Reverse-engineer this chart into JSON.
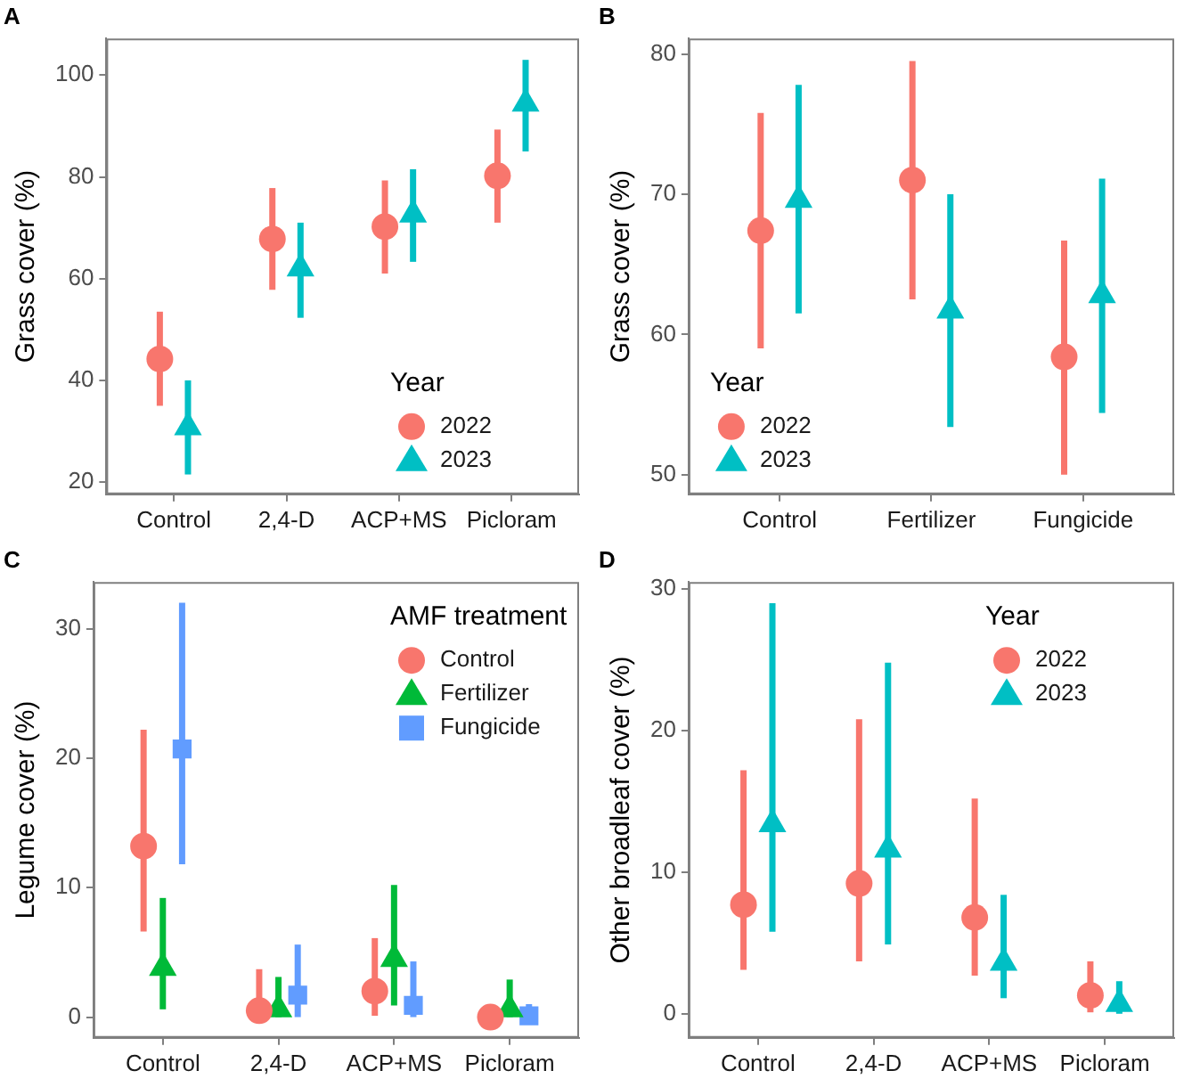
{
  "chart_data": [
    {
      "type": "scatter",
      "title": "A",
      "ylabel": "Grass cover (%)",
      "categories": [
        "Control",
        "2,4-D",
        "ACP+MS",
        "Picloram"
      ],
      "ylim": [
        17.6,
        107.2
      ],
      "yticks": [
        20,
        40,
        60,
        80,
        100
      ],
      "grid": false,
      "legend": "bottom right",
      "legend_title": "Year",
      "series": [
        {
          "name": "2022",
          "color": "#f8766d",
          "marker": "circle",
          "values": [
            44.2,
            67.8,
            70.2,
            80.2
          ],
          "errors": [
            [
              35,
              53.5
            ],
            [
              57.8,
              77.8
            ],
            [
              61,
              79.3
            ],
            [
              71,
              89.3
            ]
          ]
        },
        {
          "name": "2023",
          "color": "#00bfc4",
          "marker": "triangle",
          "values": [
            30.8,
            62,
            72.6,
            94.4
          ],
          "errors": [
            [
              21.5,
              40
            ],
            [
              52.3,
              71
            ],
            [
              63.3,
              81.5
            ],
            [
              85,
              103
            ]
          ]
        }
      ]
    },
    {
      "type": "scatter",
      "title": "B",
      "ylabel": "Grass cover (%)",
      "categories": [
        "Control",
        "Fertilizer",
        "Fungicide"
      ],
      "ylim": [
        48.6,
        81.1
      ],
      "yticks": [
        50,
        60,
        70,
        80
      ],
      "grid": false,
      "legend": "bottom left",
      "legend_title": "Year",
      "series": [
        {
          "name": "2022",
          "color": "#f8766d",
          "marker": "circle",
          "values": [
            67.4,
            71,
            58.4
          ],
          "errors": [
            [
              59,
              75.8
            ],
            [
              62.5,
              79.5
            ],
            [
              50,
              66.7
            ]
          ]
        },
        {
          "name": "2023",
          "color": "#00bfc4",
          "marker": "triangle",
          "values": [
            69.6,
            61.7,
            62.8
          ],
          "errors": [
            [
              61.5,
              77.8
            ],
            [
              53.4,
              70
            ],
            [
              54.4,
              71.1
            ]
          ]
        }
      ]
    },
    {
      "type": "scatter",
      "title": "C",
      "ylabel": "Legume cover (%)",
      "categories": [
        "Control",
        "2,4-D",
        "ACP+MS",
        "Picloram"
      ],
      "ylim": [
        -1.6,
        33.6
      ],
      "yticks": [
        0,
        10,
        20,
        30
      ],
      "grid": false,
      "legend": "top right",
      "legend_title": "AMF treatment",
      "series": [
        {
          "name": "Control",
          "color": "#f8766d",
          "marker": "circle",
          "values": [
            13.2,
            0.5,
            2.0,
            0
          ],
          "errors": [
            [
              6.6,
              22.2
            ],
            [
              0,
              3.7
            ],
            [
              0.1,
              6.1
            ],
            [
              0,
              1
            ]
          ]
        },
        {
          "name": "Fertilizer",
          "color": "#00ba38",
          "marker": "triangle",
          "values": [
            3.8,
            0.6,
            4.5,
            0.6
          ],
          "errors": [
            [
              0.6,
              9.2
            ],
            [
              0,
              3.1
            ],
            [
              0.9,
              10.2
            ],
            [
              0,
              2.9
            ]
          ]
        },
        {
          "name": "Fungicide",
          "color": "#619cff",
          "marker": "square",
          "values": [
            20.7,
            1.7,
            0.9,
            0.1
          ],
          "errors": [
            [
              11.8,
              32
            ],
            [
              0,
              5.6
            ],
            [
              0,
              4.3
            ],
            [
              0,
              1
            ]
          ]
        }
      ]
    },
    {
      "type": "scatter",
      "title": "D",
      "ylabel": "Other broadleaf cover (%)",
      "categories": [
        "Control",
        "2,4-D",
        "ACP+MS",
        "Picloram"
      ],
      "ylim": [
        -1.7,
        30.5
      ],
      "yticks": [
        0,
        10,
        20,
        30
      ],
      "grid": false,
      "legend": "top right",
      "legend_title": "Year",
      "series": [
        {
          "name": "2022",
          "color": "#f8766d",
          "marker": "circle",
          "values": [
            7.7,
            9.2,
            6.8,
            1.3
          ],
          "errors": [
            [
              3.1,
              17.2
            ],
            [
              3.7,
              20.8
            ],
            [
              2.7,
              15.2
            ],
            [
              0.1,
              3.7
            ]
          ]
        },
        {
          "name": "2023",
          "color": "#00bfc4",
          "marker": "triangle",
          "values": [
            13.4,
            11.6,
            3.6,
            0.7
          ],
          "errors": [
            [
              5.8,
              29
            ],
            [
              4.9,
              24.8
            ],
            [
              1.1,
              8.4
            ],
            [
              0,
              2.3
            ]
          ]
        }
      ]
    }
  ]
}
